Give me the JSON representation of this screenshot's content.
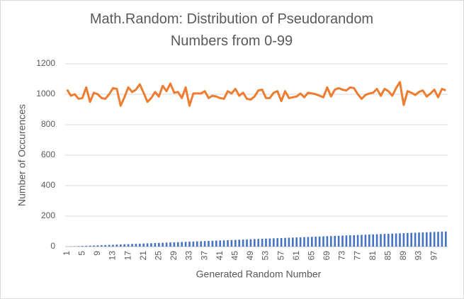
{
  "chart_data": {
    "type": "bar-line",
    "title": "Math.Random: Distribution of Pseudorandom Numbers from 0-99",
    "x_label": "Generated Random Number",
    "y_label": "Number of Occurences",
    "categories": [
      1,
      null,
      null,
      null,
      5,
      null,
      null,
      null,
      9,
      null,
      null,
      null,
      13,
      null,
      null,
      null,
      17,
      null,
      null,
      null,
      21,
      null,
      null,
      null,
      25,
      null,
      null,
      null,
      29,
      null,
      null,
      null,
      33,
      null,
      null,
      null,
      37,
      null,
      null,
      null,
      41,
      null,
      null,
      null,
      45,
      null,
      null,
      null,
      49,
      null,
      null,
      null,
      53,
      null,
      null,
      null,
      57,
      null,
      null,
      null,
      61,
      null,
      null,
      null,
      65,
      null,
      null,
      null,
      69,
      null,
      null,
      null,
      73,
      null,
      null,
      null,
      77,
      null,
      null,
      null,
      81,
      null,
      null,
      null,
      85,
      null,
      null,
      null,
      89,
      null,
      null,
      null,
      93,
      null,
      null,
      null,
      97,
      null,
      null,
      null
    ],
    "series": [
      {
        "type": "bar",
        "color": "#4472c4",
        "values": [
          0,
          1,
          2,
          3,
          4,
          5,
          6,
          7,
          8,
          9,
          10,
          11,
          12,
          13,
          14,
          15,
          16,
          17,
          18,
          19,
          20,
          21,
          22,
          23,
          24,
          25,
          26,
          27,
          28,
          29,
          30,
          31,
          32,
          33,
          34,
          35,
          36,
          37,
          38,
          39,
          40,
          41,
          42,
          43,
          44,
          45,
          46,
          47,
          48,
          49,
          50,
          51,
          52,
          53,
          54,
          55,
          56,
          57,
          58,
          59,
          60,
          61,
          62,
          63,
          64,
          65,
          66,
          67,
          68,
          69,
          70,
          71,
          72,
          73,
          74,
          75,
          76,
          77,
          78,
          79,
          80,
          81,
          82,
          83,
          84,
          85,
          86,
          87,
          88,
          89,
          90,
          91,
          92,
          93,
          94,
          95,
          96,
          97,
          98,
          99
        ]
      },
      {
        "type": "line",
        "color": "#ed7d31",
        "values": [
          1030,
          990,
          1000,
          970,
          975,
          1045,
          950,
          1010,
          1000,
          975,
          970,
          1000,
          1040,
          1035,
          925,
          980,
          1045,
          1015,
          1030,
          1065,
          1010,
          950,
          975,
          1015,
          985,
          1055,
          1020,
          1070,
          1010,
          1015,
          975,
          1045,
          925,
          1005,
          1005,
          1005,
          1020,
          975,
          990,
          985,
          975,
          970,
          1020,
          1005,
          1035,
          990,
          1010,
          970,
          965,
          985,
          1025,
          1030,
          975,
          975,
          1010,
          1020,
          955,
          1020,
          975,
          980,
          985,
          1005,
          980,
          1010,
          1005,
          1000,
          990,
          980,
          1045,
          985,
          1030,
          1040,
          1030,
          1025,
          1045,
          1040,
          1000,
          970,
          995,
          1005,
          1010,
          1035,
          990,
          1035,
          1020,
          990,
          1040,
          1080,
          930,
          1020,
          1010,
          995,
          1015,
          1025,
          985,
          1005,
          1030,
          980,
          1035,
          1025
        ]
      }
    ],
    "ylim": [
      0,
      1200
    ],
    "yticks": [
      0,
      200,
      400,
      600,
      800,
      1000,
      1200
    ],
    "grid": true
  }
}
